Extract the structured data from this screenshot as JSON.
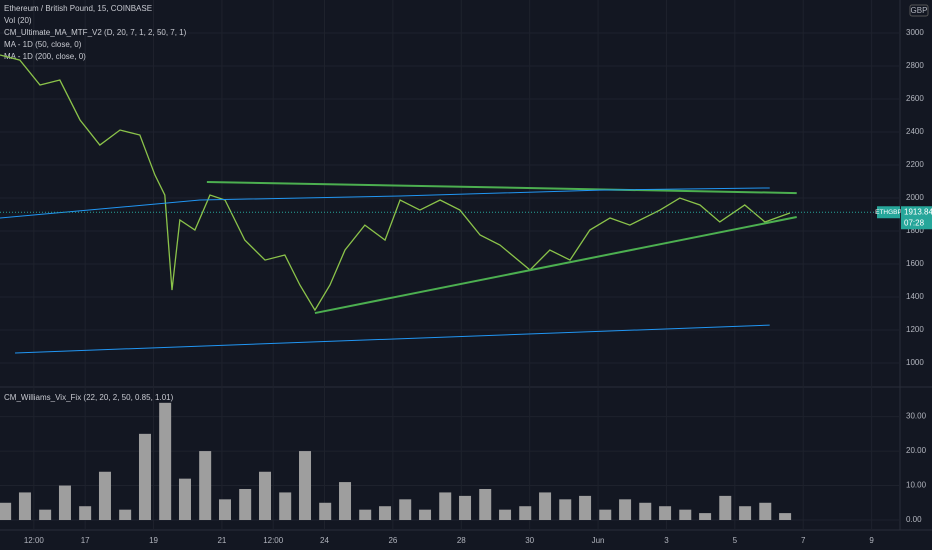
{
  "chart_data": [
    {
      "type": "line",
      "title": "Ethereum / British Pound, 15, COINBASE",
      "indicators": [
        "Vol (20)",
        "CM_Ultimate_MA_MTF_V2 (D, 20, 7, 1, 2, 50, 7, 1)",
        "MA - 1D (50, close, 0)",
        "MA - 1D (200, close, 0)"
      ],
      "currency": "GBP",
      "symbol": "ETHGBP",
      "last_price": 1913.84,
      "countdown": "07:28",
      "xlim": [
        14.51,
        40.83
      ],
      "ylim": [
        867,
        3200
      ],
      "yticks": [
        1000,
        1200,
        1400,
        1600,
        1800,
        2000,
        2200,
        2400,
        2600,
        2800,
        3000
      ],
      "series": [
        {
          "color": "#8bc34a",
          "width": 1.3,
          "x": [
            14.51,
            15.09,
            15.68,
            16.26,
            16.85,
            17.43,
            18.02,
            18.6,
            19.04,
            19.33,
            19.54,
            19.77,
            20.21,
            20.65,
            21.09,
            21.67,
            22.26,
            22.84,
            23.28,
            23.72,
            24.16,
            24.6,
            25.18,
            25.77,
            26.21,
            26.79,
            27.38,
            27.96,
            28.55,
            29.13,
            30.01,
            30.59,
            31.18,
            31.76,
            32.35,
            32.93,
            33.81,
            34.39,
            34.98,
            35.56,
            36.29,
            36.88,
            37.61
          ],
          "values": [
            2867,
            2836,
            2685,
            2715,
            2473,
            2321,
            2412,
            2382,
            2140,
            2018,
            1442,
            1867,
            1806,
            2018,
            1988,
            1745,
            1624,
            1655,
            1473,
            1321,
            1473,
            1685,
            1836,
            1745,
            1988,
            1927,
            1988,
            1927,
            1776,
            1715,
            1564,
            1685,
            1624,
            1806,
            1879,
            1836,
            1927,
            2000,
            1958,
            1855,
            1958,
            1855,
            1909
          ]
        },
        {
          "color": "#4caf50",
          "width": 2,
          "x": [
            20.56,
            37.81
          ],
          "values": [
            2097,
            2030
          ]
        },
        {
          "color": "#4caf50",
          "width": 2,
          "x": [
            23.72,
            37.81
          ],
          "values": [
            1303,
            1885
          ]
        },
        {
          "color": "#2196f3",
          "width": 1,
          "x": [
            14.95,
            37.02
          ],
          "values": [
            1061,
            1230
          ]
        },
        {
          "color": "#2196f3",
          "width": 1,
          "x": [
            14.51,
            20.36,
            26.21,
            32.05,
            37.02
          ],
          "values": [
            1879,
            1988,
            2012,
            2048,
            2061
          ]
        }
      ]
    },
    {
      "type": "bar",
      "title": "CM_Williams_Vix_Fix (22, 20, 2, 50, 0.85, 1.01)",
      "color": "#9e9e9e",
      "xlim": [
        14.51,
        40.83
      ],
      "ylim": [
        -2.9,
        38.3
      ],
      "yticks": [
        {
          "value": 0,
          "label": "0.00"
        },
        {
          "value": 10,
          "label": "10.00"
        },
        {
          "value": 20,
          "label": "20.00"
        },
        {
          "value": 30,
          "label": "30.00"
        }
      ],
      "xticks": [
        {
          "value": 15.5,
          "label": "12:00"
        },
        17,
        19,
        21,
        {
          "value": 22.5,
          "label": "12:00"
        },
        24,
        26,
        28,
        30,
        {
          "value": 32,
          "label": "Jun"
        },
        {
          "value": 34,
          "label": "3"
        },
        {
          "value": 36,
          "label": "5"
        },
        {
          "value": 38,
          "label": "7"
        },
        {
          "value": 40,
          "label": "9"
        }
      ],
      "x": [
        14.66,
        15.24,
        15.83,
        16.41,
        17.0,
        17.58,
        18.17,
        18.75,
        19.34,
        19.92,
        20.51,
        21.09,
        21.68,
        22.26,
        22.85,
        23.43,
        24.02,
        24.6,
        25.19,
        25.77,
        26.36,
        26.94,
        27.53,
        28.11,
        28.7,
        29.28,
        29.87,
        30.45,
        31.04,
        31.62,
        32.21,
        32.79,
        33.38,
        33.96,
        34.55,
        35.13,
        35.72,
        36.3,
        36.89,
        37.47
      ],
      "values": [
        5,
        8,
        3,
        10,
        4,
        14,
        3,
        25,
        34,
        12,
        20,
        6,
        9,
        14,
        8,
        20,
        5,
        11,
        3,
        4,
        6,
        3,
        8,
        7,
        9,
        3,
        4,
        8,
        6,
        7,
        3,
        6,
        5,
        4,
        3,
        2,
        7,
        4,
        5,
        2
      ]
    }
  ]
}
